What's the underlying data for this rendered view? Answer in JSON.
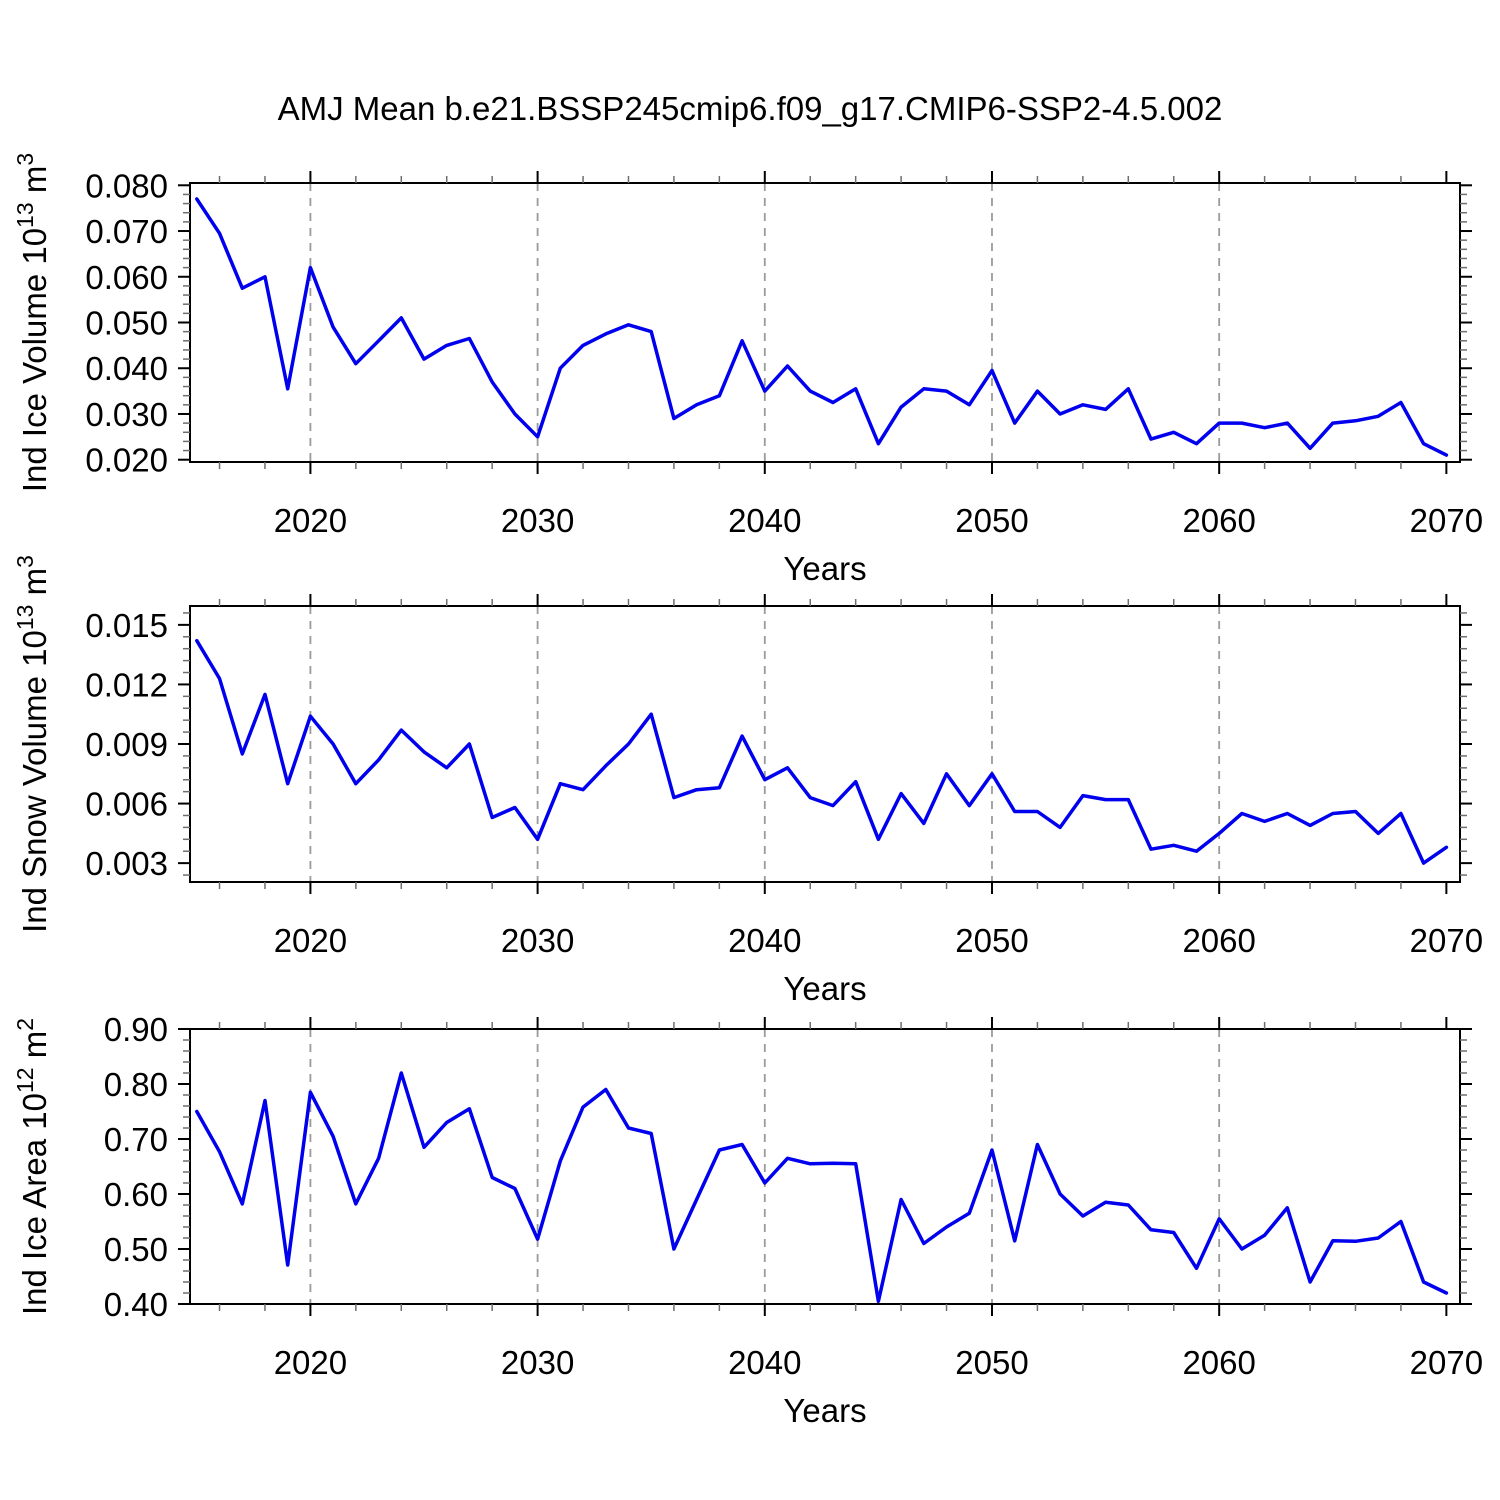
{
  "title": "AMJ Mean b.e21.BSSP245cmip6.f09_g17.CMIP6-SSP2-4.5.002",
  "colors": {
    "line": "#0000ee",
    "grid": "#9a9a9a",
    "frame": "#000000",
    "minor_tick": "#6e6e6e",
    "background": "#ffffff"
  },
  "chart_data": [
    {
      "name": "ice-volume",
      "type": "line",
      "ylabel_parts": [
        {
          "t": "Ind Ice Volume 10"
        },
        {
          "t": "13",
          "sup": true
        },
        {
          "t": " m"
        },
        {
          "t": "3",
          "sup": true
        }
      ],
      "ylabel_plain": "Ind Ice Volume 10^13 m^3",
      "xlabel": "Years",
      "legend": "none",
      "grid": "vertical-dashed",
      "xlim": [
        2014.7,
        2070.6
      ],
      "ylim": [
        0.0195,
        0.0805
      ],
      "x_ticks": [
        {
          "v": 2020,
          "label": "2020"
        },
        {
          "v": 2030,
          "label": "2030"
        },
        {
          "v": 2040,
          "label": "2040"
        },
        {
          "v": 2050,
          "label": "2050"
        },
        {
          "v": 2060,
          "label": "2060"
        },
        {
          "v": 2070,
          "label": "2070"
        }
      ],
      "x_minor_step": 2,
      "y_ticks": [
        {
          "v": 0.02,
          "label": "0.020"
        },
        {
          "v": 0.03,
          "label": "0.030"
        },
        {
          "v": 0.04,
          "label": "0.040"
        },
        {
          "v": 0.05,
          "label": "0.050"
        },
        {
          "v": 0.06,
          "label": "0.060"
        },
        {
          "v": 0.07,
          "label": "0.070"
        },
        {
          "v": 0.08,
          "label": "0.080"
        }
      ],
      "y_minor_step": 0.002,
      "x_gridlines": [
        2020,
        2030,
        2040,
        2050,
        2060
      ],
      "x": [
        2015,
        2016,
        2017,
        2018,
        2019,
        2020,
        2021,
        2022,
        2023,
        2024,
        2025,
        2026,
        2027,
        2028,
        2029,
        2030,
        2031,
        2032,
        2033,
        2034,
        2035,
        2036,
        2037,
        2038,
        2039,
        2040,
        2041,
        2042,
        2043,
        2044,
        2045,
        2046,
        2047,
        2048,
        2049,
        2050,
        2051,
        2052,
        2053,
        2054,
        2055,
        2056,
        2057,
        2058,
        2059,
        2060,
        2061,
        2062,
        2063,
        2064,
        2065,
        2066,
        2067,
        2068,
        2069,
        2070
      ],
      "values": [
        0.077,
        0.0695,
        0.0575,
        0.06,
        0.0355,
        0.062,
        0.049,
        0.041,
        0.046,
        0.051,
        0.042,
        0.045,
        0.0465,
        0.037,
        0.03,
        0.025,
        0.04,
        0.045,
        0.0475,
        0.0495,
        0.048,
        0.029,
        0.032,
        0.034,
        0.046,
        0.035,
        0.0405,
        0.035,
        0.0325,
        0.0355,
        0.0235,
        0.0315,
        0.0355,
        0.035,
        0.032,
        0.0395,
        0.028,
        0.035,
        0.03,
        0.032,
        0.031,
        0.0355,
        0.0245,
        0.026,
        0.0235,
        0.028,
        0.028,
        0.027,
        0.028,
        0.0225,
        0.028,
        0.0285,
        0.0295,
        0.0325,
        0.0235,
        0.021
      ]
    },
    {
      "name": "snow-volume",
      "type": "line",
      "ylabel_parts": [
        {
          "t": "Ind Snow Volume 10"
        },
        {
          "t": "13",
          "sup": true
        },
        {
          "t": " m"
        },
        {
          "t": "3",
          "sup": true
        }
      ],
      "ylabel_plain": "Ind Snow Volume 10^13 m^3",
      "xlabel": "Years",
      "legend": "none",
      "grid": "vertical-dashed",
      "xlim": [
        2014.7,
        2070.6
      ],
      "ylim": [
        0.00205,
        0.01595
      ],
      "x_ticks": [
        {
          "v": 2020,
          "label": "2020"
        },
        {
          "v": 2030,
          "label": "2030"
        },
        {
          "v": 2040,
          "label": "2040"
        },
        {
          "v": 2050,
          "label": "2050"
        },
        {
          "v": 2060,
          "label": "2060"
        },
        {
          "v": 2070,
          "label": "2070"
        }
      ],
      "x_minor_step": 2,
      "y_ticks": [
        {
          "v": 0.003,
          "label": "0.003"
        },
        {
          "v": 0.006,
          "label": "0.006"
        },
        {
          "v": 0.009,
          "label": "0.009"
        },
        {
          "v": 0.012,
          "label": "0.012"
        },
        {
          "v": 0.015,
          "label": "0.015"
        }
      ],
      "y_minor_step": 0.0006,
      "x_gridlines": [
        2020,
        2030,
        2040,
        2050,
        2060
      ],
      "x": [
        2015,
        2016,
        2017,
        2018,
        2019,
        2020,
        2021,
        2022,
        2023,
        2024,
        2025,
        2026,
        2027,
        2028,
        2029,
        2030,
        2031,
        2032,
        2033,
        2034,
        2035,
        2036,
        2037,
        2038,
        2039,
        2040,
        2041,
        2042,
        2043,
        2044,
        2045,
        2046,
        2047,
        2048,
        2049,
        2050,
        2051,
        2052,
        2053,
        2054,
        2055,
        2056,
        2057,
        2058,
        2059,
        2060,
        2061,
        2062,
        2063,
        2064,
        2065,
        2066,
        2067,
        2068,
        2069,
        2070
      ],
      "values": [
        0.0142,
        0.0123,
        0.0085,
        0.0115,
        0.007,
        0.0104,
        0.009,
        0.007,
        0.0082,
        0.0097,
        0.0086,
        0.0078,
        0.009,
        0.0053,
        0.0058,
        0.0042,
        0.007,
        0.0067,
        0.0079,
        0.009,
        0.0105,
        0.0063,
        0.0067,
        0.0068,
        0.0094,
        0.0072,
        0.0078,
        0.0063,
        0.0059,
        0.0071,
        0.0042,
        0.0065,
        0.005,
        0.0075,
        0.0059,
        0.0075,
        0.0056,
        0.0056,
        0.0048,
        0.0064,
        0.0062,
        0.0062,
        0.0037,
        0.0039,
        0.0036,
        0.0045,
        0.0055,
        0.0051,
        0.0055,
        0.0049,
        0.0055,
        0.0056,
        0.0045,
        0.0055,
        0.003,
        0.0038
      ]
    },
    {
      "name": "ice-area",
      "type": "line",
      "ylabel_parts": [
        {
          "t": "Ind Ice Area 10"
        },
        {
          "t": "12",
          "sup": true
        },
        {
          "t": " m"
        },
        {
          "t": "2",
          "sup": true
        }
      ],
      "ylabel_plain": "Ind Ice Area 10^12 m^2",
      "xlabel": "Years",
      "legend": "none",
      "grid": "vertical-dashed",
      "xlim": [
        2014.7,
        2070.6
      ],
      "ylim": [
        0.4,
        0.9
      ],
      "x_ticks": [
        {
          "v": 2020,
          "label": "2020"
        },
        {
          "v": 2030,
          "label": "2030"
        },
        {
          "v": 2040,
          "label": "2040"
        },
        {
          "v": 2050,
          "label": "2050"
        },
        {
          "v": 2060,
          "label": "2060"
        },
        {
          "v": 2070,
          "label": "2070"
        }
      ],
      "x_minor_step": 2,
      "y_ticks": [
        {
          "v": 0.4,
          "label": "0.40"
        },
        {
          "v": 0.5,
          "label": "0.50"
        },
        {
          "v": 0.6,
          "label": "0.60"
        },
        {
          "v": 0.7,
          "label": "0.70"
        },
        {
          "v": 0.8,
          "label": "0.80"
        },
        {
          "v": 0.9,
          "label": "0.90"
        }
      ],
      "y_minor_step": 0.02,
      "x_gridlines": [
        2020,
        2030,
        2040,
        2050,
        2060
      ],
      "x": [
        2015,
        2016,
        2017,
        2018,
        2019,
        2020,
        2021,
        2022,
        2023,
        2024,
        2025,
        2026,
        2027,
        2028,
        2029,
        2030,
        2031,
        2032,
        2033,
        2034,
        2035,
        2036,
        2037,
        2038,
        2039,
        2040,
        2041,
        2042,
        2043,
        2044,
        2045,
        2046,
        2047,
        2048,
        2049,
        2050,
        2051,
        2052,
        2053,
        2054,
        2055,
        2056,
        2057,
        2058,
        2059,
        2060,
        2061,
        2062,
        2063,
        2064,
        2065,
        2066,
        2067,
        2068,
        2069,
        2070
      ],
      "values": [
        0.75,
        0.677,
        0.582,
        0.77,
        0.471,
        0.785,
        0.705,
        0.582,
        0.665,
        0.82,
        0.685,
        0.73,
        0.755,
        0.63,
        0.61,
        0.518,
        0.66,
        0.758,
        0.79,
        0.72,
        0.71,
        0.5,
        0.59,
        0.68,
        0.69,
        0.62,
        0.665,
        0.655,
        0.656,
        0.655,
        0.405,
        0.59,
        0.51,
        0.54,
        0.565,
        0.68,
        0.515,
        0.69,
        0.6,
        0.56,
        0.585,
        0.58,
        0.535,
        0.53,
        0.465,
        0.555,
        0.5,
        0.525,
        0.575,
        0.44,
        0.515,
        0.514,
        0.52,
        0.55,
        0.44,
        0.42
      ]
    }
  ]
}
